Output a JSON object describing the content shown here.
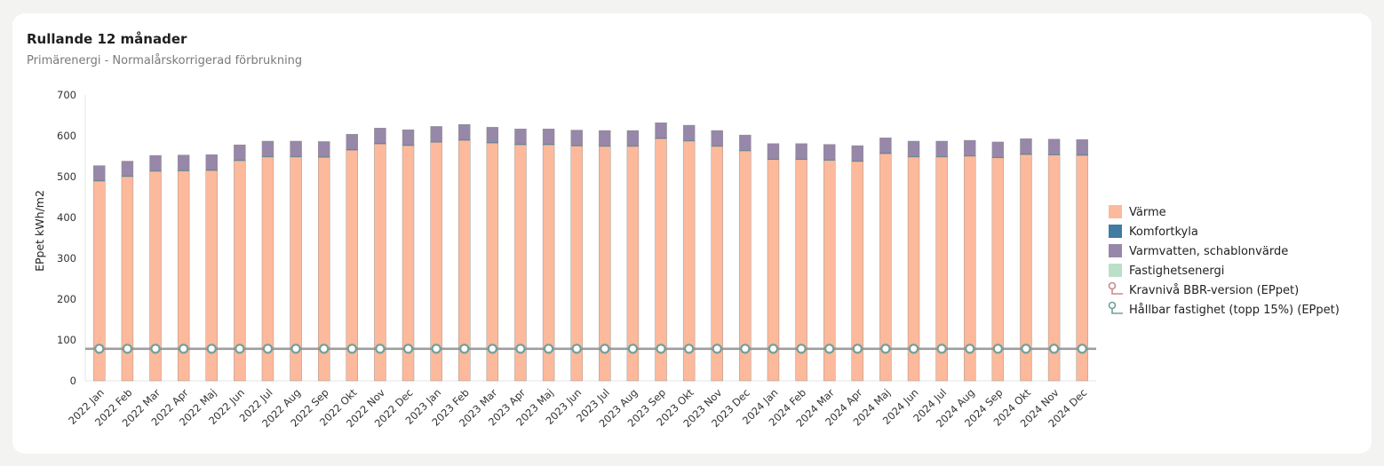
{
  "card": {
    "title": "Rullande 12 månader",
    "subtitle": "Primärenergi - Normalårskorrigerad förbrukning"
  },
  "chart_data": {
    "type": "bar",
    "stacked": true,
    "ylabel": "EPpet kWh/m2",
    "ylim": [
      0,
      700
    ],
    "yticks": [
      0,
      100,
      200,
      300,
      400,
      500,
      600,
      700
    ],
    "legend_position": "right",
    "categories": [
      "2022 Jan",
      "2022 Feb",
      "2022 Mar",
      "2022 Apr",
      "2022 Maj",
      "2022 Jun",
      "2022 Jul",
      "2022 Aug",
      "2022 Sep",
      "2022 Okt",
      "2022 Nov",
      "2022 Dec",
      "2023 Jan",
      "2023 Feb",
      "2023 Mar",
      "2023 Apr",
      "2023 Maj",
      "2023 Jun",
      "2023 Jul",
      "2023 Aug",
      "2023 Sep",
      "2023 Okt",
      "2023 Nov",
      "2023 Dec",
      "2024 Jan",
      "2024 Feb",
      "2024 Mar",
      "2024 Apr",
      "2024 Maj",
      "2024 Jun",
      "2024 Jul",
      "2024 Aug",
      "2024 Sep",
      "2024 Okt",
      "2024 Nov",
      "2024 Dec"
    ],
    "series": [
      {
        "name": "Värme",
        "color": "#fdb99b",
        "values": [
          489,
          500,
          513,
          514,
          515,
          539,
          548,
          548,
          547,
          565,
          580,
          576,
          584,
          589,
          582,
          578,
          578,
          575,
          574,
          574,
          593,
          587,
          574,
          563,
          542,
          542,
          540,
          537,
          556,
          548,
          548,
          550,
          546,
          554,
          553,
          552
        ]
      },
      {
        "name": "Komfortkyla",
        "color": "#3f7ba3",
        "values": [
          2,
          2,
          2,
          2,
          2,
          2,
          2,
          2,
          2,
          2,
          2,
          2,
          2,
          2,
          2,
          2,
          2,
          2,
          2,
          2,
          2,
          2,
          2,
          2,
          2,
          2,
          2,
          2,
          2,
          2,
          2,
          2,
          2,
          2,
          2,
          2
        ]
      },
      {
        "name": "Varmvatten, schablonvärde",
        "color": "#9787a8",
        "values": [
          36,
          36,
          37,
          37,
          37,
          37,
          37,
          37,
          37,
          37,
          37,
          37,
          37,
          37,
          37,
          37,
          37,
          37,
          37,
          37,
          37,
          37,
          37,
          37,
          37,
          37,
          37,
          37,
          37,
          37,
          37,
          37,
          37,
          37,
          37,
          37
        ]
      },
      {
        "name": "Fastighetsenergi",
        "color": "#b9e0c9",
        "values": [
          0,
          0,
          0,
          0,
          0,
          0,
          0,
          0,
          0,
          0,
          0,
          0,
          0,
          0,
          0,
          0,
          0,
          0,
          0,
          0,
          0,
          0,
          0,
          0,
          0,
          0,
          0,
          0,
          0,
          0,
          0,
          0,
          0,
          0,
          0,
          0
        ]
      }
    ],
    "lines": [
      {
        "name": "Kravnivå BBR-version (EPpet)",
        "color": "#cc8a8a",
        "value": 80
      },
      {
        "name": "Hållbar fastighet (topp 15%) (EPpet)",
        "color": "#6fa09a",
        "value": 77
      }
    ]
  }
}
